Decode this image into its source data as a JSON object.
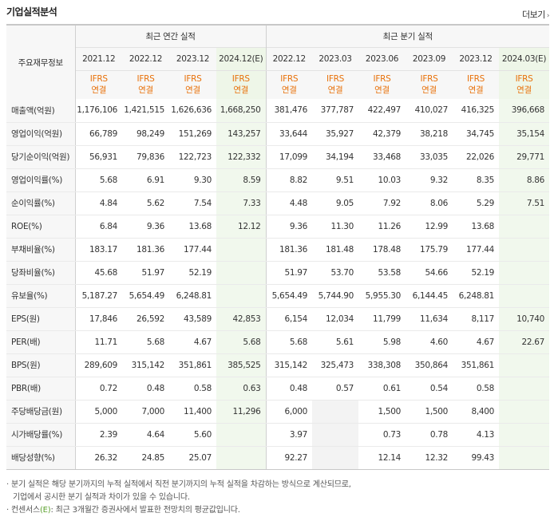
{
  "title": "기업실적분석",
  "more_label": "더보기",
  "header": {
    "corner_label": "주요재무정보",
    "annual_group": "최근 연간 실적",
    "quarterly_group": "최근 분기 실적",
    "annual_periods": [
      "2021.12",
      "2022.12",
      "2023.12",
      "2024.12(E)"
    ],
    "quarterly_periods": [
      "2022.12",
      "2023.03",
      "2023.06",
      "2023.09",
      "2023.12",
      "2024.03(E)"
    ],
    "ifrs_line1": "IFRS",
    "ifrs_line2": "연결"
  },
  "rows": [
    {
      "label": "매출액(억원)",
      "annual": [
        "1,176,106",
        "1,421,515",
        "1,626,636",
        "1,668,250"
      ],
      "quarterly": [
        "381,476",
        "377,787",
        "422,497",
        "410,027",
        "416,325",
        "396,668"
      ]
    },
    {
      "label": "영업이익(억원)",
      "annual": [
        "66,789",
        "98,249",
        "151,269",
        "143,257"
      ],
      "quarterly": [
        "33,644",
        "35,927",
        "42,379",
        "38,218",
        "34,745",
        "35,154"
      ]
    },
    {
      "label": "당기순이익(억원)",
      "annual": [
        "56,931",
        "79,836",
        "122,723",
        "122,332"
      ],
      "quarterly": [
        "17,099",
        "34,194",
        "33,468",
        "33,035",
        "22,026",
        "29,771"
      ]
    },
    {
      "label": "영업이익률(%)",
      "annual": [
        "5.68",
        "6.91",
        "9.30",
        "8.59"
      ],
      "quarterly": [
        "8.82",
        "9.51",
        "10.03",
        "9.32",
        "8.35",
        "8.86"
      ]
    },
    {
      "label": "순이익률(%)",
      "annual": [
        "4.84",
        "5.62",
        "7.54",
        "7.33"
      ],
      "quarterly": [
        "4.48",
        "9.05",
        "7.92",
        "8.06",
        "5.29",
        "7.51"
      ]
    },
    {
      "label": "ROE(%)",
      "annual": [
        "6.84",
        "9.36",
        "13.68",
        "12.12"
      ],
      "quarterly": [
        "9.36",
        "11.30",
        "11.26",
        "12.99",
        "13.68",
        ""
      ]
    },
    {
      "label": "부채비율(%)",
      "annual": [
        "183.17",
        "181.36",
        "177.44",
        ""
      ],
      "quarterly": [
        "181.36",
        "181.48",
        "178.48",
        "175.79",
        "177.44",
        ""
      ]
    },
    {
      "label": "당좌비율(%)",
      "annual": [
        "45.68",
        "51.97",
        "52.19",
        ""
      ],
      "quarterly": [
        "51.97",
        "53.70",
        "53.58",
        "54.66",
        "52.19",
        ""
      ]
    },
    {
      "label": "유보율(%)",
      "annual": [
        "5,187.27",
        "5,654.49",
        "6,248.81",
        ""
      ],
      "quarterly": [
        "5,654.49",
        "5,744.90",
        "5,955.30",
        "6,144.45",
        "6,248.81",
        ""
      ]
    },
    {
      "label": "EPS(원)",
      "annual": [
        "17,846",
        "26,592",
        "43,589",
        "42,853"
      ],
      "quarterly": [
        "6,154",
        "12,034",
        "11,799",
        "11,634",
        "8,117",
        "10,740"
      ]
    },
    {
      "label": "PER(배)",
      "annual": [
        "11.71",
        "5.68",
        "4.67",
        "5.68"
      ],
      "quarterly": [
        "5.68",
        "5.61",
        "5.98",
        "4.60",
        "4.67",
        "22.67"
      ]
    },
    {
      "label": "BPS(원)",
      "annual": [
        "289,609",
        "315,142",
        "351,861",
        "385,525"
      ],
      "quarterly": [
        "315,142",
        "325,473",
        "338,308",
        "350,864",
        "351,861",
        ""
      ]
    },
    {
      "label": "PBR(배)",
      "annual": [
        "0.72",
        "0.48",
        "0.58",
        "0.63"
      ],
      "quarterly": [
        "0.48",
        "0.57",
        "0.61",
        "0.54",
        "0.58",
        ""
      ]
    },
    {
      "label": "주당배당금(원)",
      "annual": [
        "5,000",
        "7,000",
        "11,400",
        "11,296"
      ],
      "quarterly": [
        "6,000",
        "",
        "1,500",
        "1,500",
        "8,400",
        ""
      ]
    },
    {
      "label": "시가배당률(%)",
      "annual": [
        "2.39",
        "4.64",
        "5.60",
        ""
      ],
      "quarterly": [
        "3.97",
        "",
        "0.73",
        "0.78",
        "4.13",
        ""
      ]
    },
    {
      "label": "배당성향(%)",
      "annual": [
        "26.32",
        "24.85",
        "25.07",
        ""
      ],
      "quarterly": [
        "92.27",
        "",
        "12.14",
        "12.32",
        "99.43",
        ""
      ]
    }
  ],
  "notes": {
    "line1": "· 분기 실적은 해당 분기까지의 누적 실적에서 직전 분기까지의 누적 실적을 차감하는 방식으로 계산되므로,",
    "line2": "기업에서 공시한 분기 실적과 차이가 있을 수 있습니다.",
    "line3_prefix": "· 컨센서스",
    "line3_mark": "(E)",
    "line3_suffix": ": 최근 3개월간 증권사에서 발표한 전망치의 평균값입니다."
  },
  "colors": {
    "ifrs": "#e8710a",
    "estimate_bg": "#f1f8ed",
    "estimate_mark": "#5aa02c"
  }
}
